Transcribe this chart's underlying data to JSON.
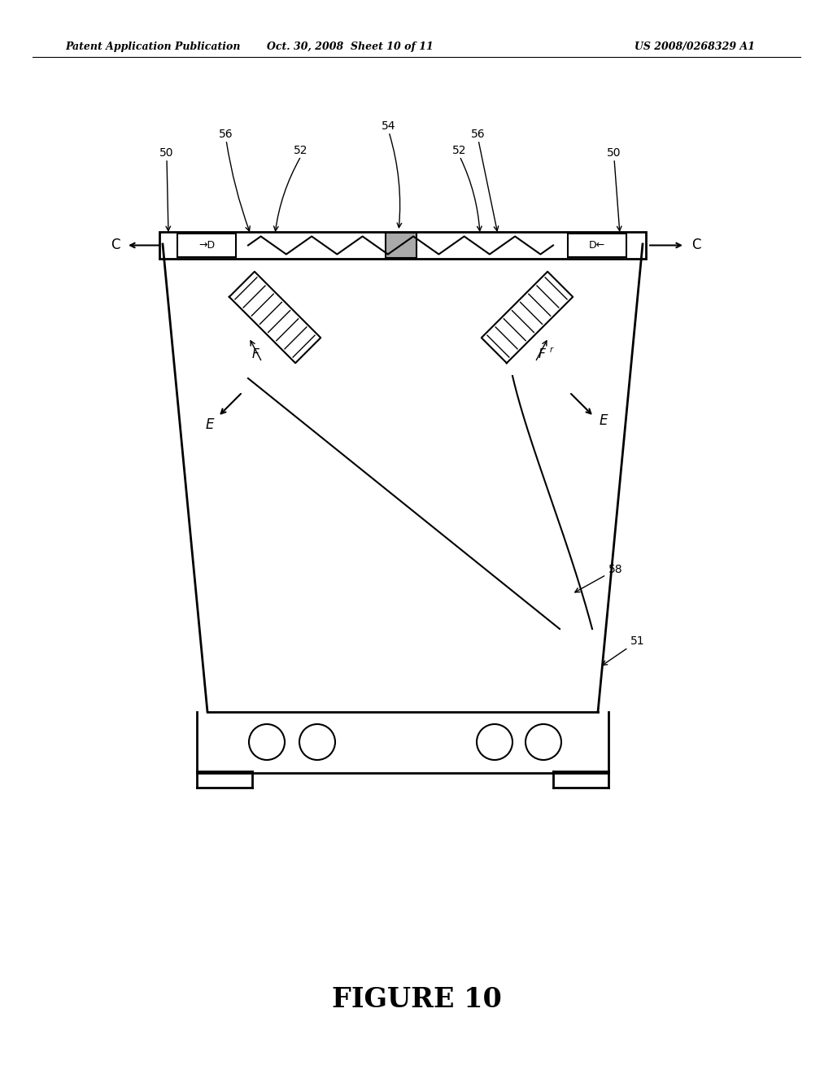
{
  "title": "FIGURE 10",
  "header_left": "Patent Application Publication",
  "header_center": "Oct. 30, 2008  Sheet 10 of 11",
  "header_right": "US 2008/0268329 A1",
  "bg_color": "#ffffff",
  "line_color": "#000000",
  "fig_width": 10.24,
  "fig_height": 13.2
}
